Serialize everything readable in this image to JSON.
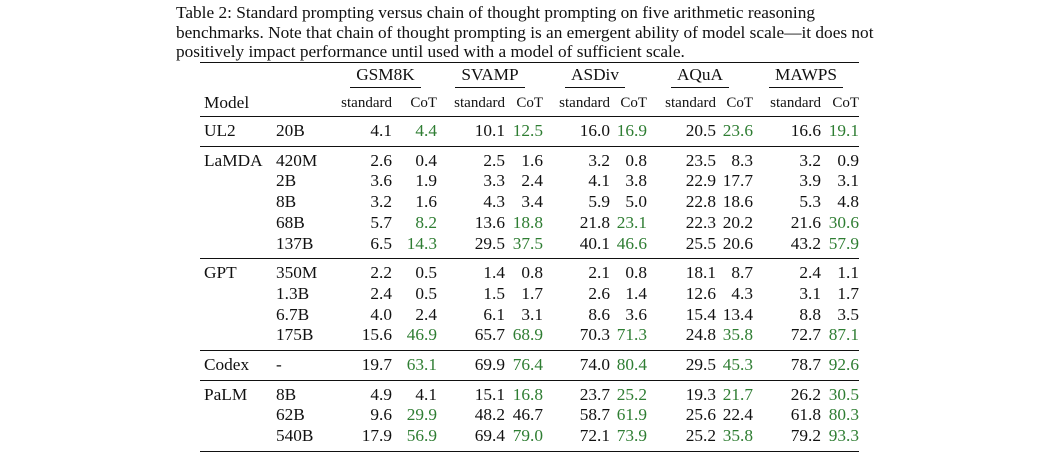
{
  "caption": "Table 2: Standard prompting versus chain of thought prompting on five arithmetic reasoning benchmarks. Note that chain of thought prompting is an emergent ability of model scale—it does not positively impact performance until used with a model of sufficient scale.",
  "header": {
    "model_label": "Model",
    "benchmarks": [
      "GSM8K",
      "SVAMP",
      "ASDiv",
      "AQuA",
      "MAWPS"
    ],
    "standard_label": "standard",
    "cot_label": "CoT"
  },
  "highlight_color": "#2e7d32",
  "groups": [
    {
      "model": "UL2",
      "rows": [
        {
          "size": "20B",
          "cells": [
            [
              "4.1",
              "4.4",
              true
            ],
            [
              "10.1",
              "12.5",
              true
            ],
            [
              "16.0",
              "16.9",
              true
            ],
            [
              "20.5",
              "23.6",
              true
            ],
            [
              "16.6",
              "19.1",
              true
            ]
          ]
        }
      ]
    },
    {
      "model": "LaMDA",
      "rows": [
        {
          "size": "420M",
          "cells": [
            [
              "2.6",
              "0.4",
              false
            ],
            [
              "2.5",
              "1.6",
              false
            ],
            [
              "3.2",
              "0.8",
              false
            ],
            [
              "23.5",
              "8.3",
              false
            ],
            [
              "3.2",
              "0.9",
              false
            ]
          ]
        },
        {
          "size": "2B",
          "cells": [
            [
              "3.6",
              "1.9",
              false
            ],
            [
              "3.3",
              "2.4",
              false
            ],
            [
              "4.1",
              "3.8",
              false
            ],
            [
              "22.9",
              "17.7",
              false
            ],
            [
              "3.9",
              "3.1",
              false
            ]
          ]
        },
        {
          "size": "8B",
          "cells": [
            [
              "3.2",
              "1.6",
              false
            ],
            [
              "4.3",
              "3.4",
              false
            ],
            [
              "5.9",
              "5.0",
              false
            ],
            [
              "22.8",
              "18.6",
              false
            ],
            [
              "5.3",
              "4.8",
              false
            ]
          ]
        },
        {
          "size": "68B",
          "cells": [
            [
              "5.7",
              "8.2",
              true
            ],
            [
              "13.6",
              "18.8",
              true
            ],
            [
              "21.8",
              "23.1",
              true
            ],
            [
              "22.3",
              "20.2",
              false
            ],
            [
              "21.6",
              "30.6",
              true
            ]
          ]
        },
        {
          "size": "137B",
          "cells": [
            [
              "6.5",
              "14.3",
              true
            ],
            [
              "29.5",
              "37.5",
              true
            ],
            [
              "40.1",
              "46.6",
              true
            ],
            [
              "25.5",
              "20.6",
              false
            ],
            [
              "43.2",
              "57.9",
              true
            ]
          ]
        }
      ]
    },
    {
      "model": "GPT",
      "rows": [
        {
          "size": "350M",
          "cells": [
            [
              "2.2",
              "0.5",
              false
            ],
            [
              "1.4",
              "0.8",
              false
            ],
            [
              "2.1",
              "0.8",
              false
            ],
            [
              "18.1",
              "8.7",
              false
            ],
            [
              "2.4",
              "1.1",
              false
            ]
          ]
        },
        {
          "size": "1.3B",
          "cells": [
            [
              "2.4",
              "0.5",
              false
            ],
            [
              "1.5",
              "1.7",
              false
            ],
            [
              "2.6",
              "1.4",
              false
            ],
            [
              "12.6",
              "4.3",
              false
            ],
            [
              "3.1",
              "1.7",
              false
            ]
          ]
        },
        {
          "size": "6.7B",
          "cells": [
            [
              "4.0",
              "2.4",
              false
            ],
            [
              "6.1",
              "3.1",
              false
            ],
            [
              "8.6",
              "3.6",
              false
            ],
            [
              "15.4",
              "13.4",
              false
            ],
            [
              "8.8",
              "3.5",
              false
            ]
          ]
        },
        {
          "size": "175B",
          "cells": [
            [
              "15.6",
              "46.9",
              true
            ],
            [
              "65.7",
              "68.9",
              true
            ],
            [
              "70.3",
              "71.3",
              true
            ],
            [
              "24.8",
              "35.8",
              true
            ],
            [
              "72.7",
              "87.1",
              true
            ]
          ]
        }
      ]
    },
    {
      "model": "Codex",
      "rows": [
        {
          "size": "-",
          "cells": [
            [
              "19.7",
              "63.1",
              true
            ],
            [
              "69.9",
              "76.4",
              true
            ],
            [
              "74.0",
              "80.4",
              true
            ],
            [
              "29.5",
              "45.3",
              true
            ],
            [
              "78.7",
              "92.6",
              true
            ]
          ]
        }
      ]
    },
    {
      "model": "PaLM",
      "rows": [
        {
          "size": "8B",
          "cells": [
            [
              "4.9",
              "4.1",
              false
            ],
            [
              "15.1",
              "16.8",
              true
            ],
            [
              "23.7",
              "25.2",
              true
            ],
            [
              "19.3",
              "21.7",
              true
            ],
            [
              "26.2",
              "30.5",
              true
            ]
          ]
        },
        {
          "size": "62B",
          "cells": [
            [
              "9.6",
              "29.9",
              true
            ],
            [
              "48.2",
              "46.7",
              false
            ],
            [
              "58.7",
              "61.9",
              true
            ],
            [
              "25.6",
              "22.4",
              false
            ],
            [
              "61.8",
              "80.3",
              true
            ]
          ]
        },
        {
          "size": "540B",
          "cells": [
            [
              "17.9",
              "56.9",
              true
            ],
            [
              "69.4",
              "79.0",
              true
            ],
            [
              "72.1",
              "73.9",
              true
            ],
            [
              "25.2",
              "35.8",
              true
            ],
            [
              "79.2",
              "93.3",
              true
            ]
          ]
        }
      ]
    }
  ]
}
